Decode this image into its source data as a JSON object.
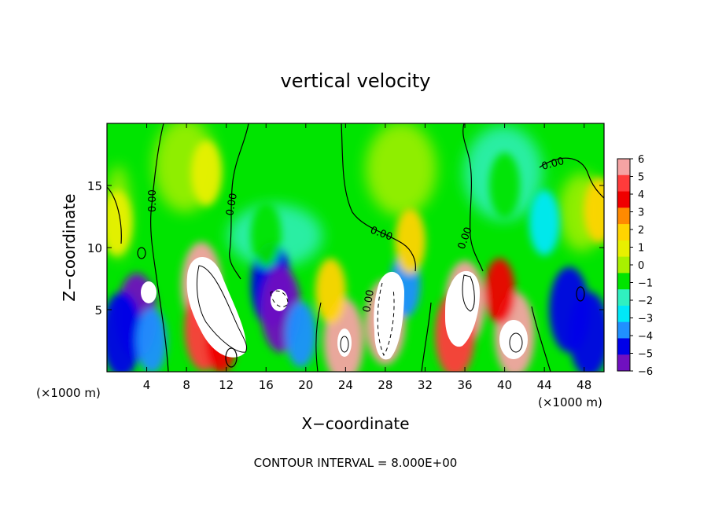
{
  "chart_data": {
    "type": "heatmap",
    "title": "vertical velocity",
    "xlabel": "X−coordinate",
    "ylabel": "Z−coordinate",
    "x_unit_left": "(×1000 m)",
    "x_unit_right": "(×1000 m)",
    "footer": "CONTOUR INTERVAL = 8.000E+00",
    "xlim": [
      0,
      50
    ],
    "ylim": [
      0,
      20
    ],
    "x_ticks": [
      4,
      8,
      12,
      16,
      20,
      24,
      28,
      32,
      36,
      40,
      44,
      48
    ],
    "x_tick_labels": [
      "4",
      "8",
      "12",
      "16",
      "20",
      "24",
      "28",
      "32",
      "36",
      "40",
      "44",
      "48"
    ],
    "y_ticks": [
      5,
      10,
      15
    ],
    "y_tick_labels": [
      "5",
      "10",
      "15"
    ],
    "colorbar": {
      "min": -6,
      "max": 6,
      "ticks": [
        6,
        5,
        4,
        3,
        2,
        1,
        0,
        -1,
        -2,
        -3,
        -4,
        -5,
        -6
      ],
      "tick_labels": [
        "6",
        "5",
        "4",
        "3",
        "2",
        "1",
        "0",
        "−1",
        "−2",
        "−3",
        "−4",
        "−5",
        "−6"
      ],
      "colors": [
        "#f5a3a3",
        "#ff3b3b",
        "#f00000",
        "#ff8a00",
        "#ffd400",
        "#e8f000",
        "#a8f000",
        "#00e400",
        "#30f0c0",
        "#00e8f8",
        "#2090ff",
        "#0000e8",
        "#7010c0"
      ],
      "over_color": "#ffffff",
      "under_color": "#ffffff"
    },
    "contour_labels": [
      "0.00",
      "0.00",
      "0.00",
      "0.00",
      "0.00",
      "0.00"
    ],
    "cells": [
      {
        "x": 3.0,
        "z": 4.5,
        "w": -6
      },
      {
        "x": 1.5,
        "z": 3.0,
        "w": -5
      },
      {
        "x": 4.5,
        "z": 2.5,
        "w": -4
      },
      {
        "x": 1.0,
        "z": 12.0,
        "w": 1
      },
      {
        "x": 9.5,
        "z": 7.0,
        "w": 6
      },
      {
        "x": 9.8,
        "z": 3.5,
        "w": 5
      },
      {
        "x": 11.5,
        "z": 2.5,
        "w": 4
      },
      {
        "x": 10.0,
        "z": 16.0,
        "w": 1
      },
      {
        "x": 16.5,
        "z": 7.0,
        "w": -5
      },
      {
        "x": 17.5,
        "z": 5.0,
        "w": -6
      },
      {
        "x": 19.5,
        "z": 3.0,
        "w": -4
      },
      {
        "x": 16.0,
        "z": 11.0,
        "w": -1
      },
      {
        "x": 23.8,
        "z": 2.5,
        "w": 6
      },
      {
        "x": 22.5,
        "z": 6.5,
        "w": 2
      },
      {
        "x": 28.0,
        "z": 4.0,
        "w": 6
      },
      {
        "x": 30.0,
        "z": 7.0,
        "w": -4
      },
      {
        "x": 30.5,
        "z": 10.5,
        "w": 2
      },
      {
        "x": 36.0,
        "z": 5.5,
        "w": 6
      },
      {
        "x": 35.0,
        "z": 3.0,
        "w": 5
      },
      {
        "x": 41.0,
        "z": 3.0,
        "w": 6
      },
      {
        "x": 39.5,
        "z": 6.5,
        "w": 4
      },
      {
        "x": 44.0,
        "z": 12.0,
        "w": -3
      },
      {
        "x": 46.5,
        "z": 5.0,
        "w": -5
      },
      {
        "x": 48.5,
        "z": 3.0,
        "w": -5
      },
      {
        "x": 49.5,
        "z": 13.0,
        "w": 2
      },
      {
        "x": 40.0,
        "z": 15.0,
        "w": -1
      }
    ]
  }
}
